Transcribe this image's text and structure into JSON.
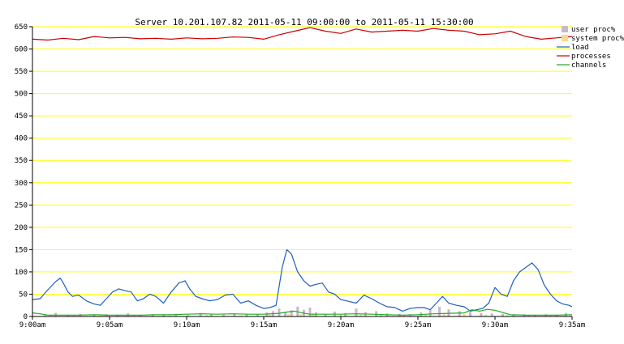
{
  "chart_data": {
    "type": "line",
    "title": "Server 10.201.107.82   2011-05-11 09:00:00 to 2011-05-11 15:30:00",
    "xlabel": "",
    "ylabel": "",
    "x_tick_labels": [
      "9:00am",
      "9:05am",
      "9:10am",
      "9:15am",
      "9:20am",
      "9:25am",
      "9:30am",
      "9:35am"
    ],
    "x_tick_minutes": [
      0,
      5,
      10,
      15,
      20,
      25,
      30,
      35
    ],
    "xlim": [
      0,
      35
    ],
    "ylim": [
      0,
      650
    ],
    "y_ticks": [
      0,
      50,
      100,
      150,
      200,
      250,
      300,
      350,
      400,
      450,
      500,
      550,
      600,
      650
    ],
    "grid": true,
    "legend_position": "top-right",
    "colors": {
      "user_proc": "#c8b8c8",
      "system_proc": "#ffd890",
      "load": "#1f5fbf",
      "processes": "#cc0000",
      "channels": "#22aa22",
      "grid": "#ffff00"
    },
    "series": [
      {
        "name": "user proc%",
        "style": "bar",
        "x": [
          0.8,
          1.5,
          2.3,
          3.1,
          4.0,
          4.8,
          5.5,
          6.2,
          7.0,
          7.8,
          8.5,
          9.3,
          10.1,
          10.9,
          11.6,
          12.4,
          13.1,
          13.9,
          14.6,
          15.2,
          15.6,
          16.0,
          16.4,
          16.8,
          17.2,
          17.6,
          18.0,
          18.4,
          19.0,
          19.6,
          20.3,
          21.0,
          21.6,
          22.3,
          23.0,
          23.8,
          24.5,
          25.2,
          25.8,
          26.4,
          27.0,
          27.7,
          28.4,
          29.1,
          29.8,
          30.5,
          31.2,
          31.9,
          32.6,
          33.3,
          34.0,
          34.6
        ],
        "values": [
          3,
          8,
          4,
          6,
          3,
          5,
          4,
          7,
          3,
          5,
          4,
          6,
          3,
          8,
          5,
          4,
          7,
          6,
          5,
          9,
          12,
          18,
          10,
          14,
          22,
          15,
          20,
          9,
          6,
          11,
          8,
          18,
          10,
          12,
          7,
          6,
          5,
          9,
          14,
          22,
          16,
          12,
          10,
          8,
          7,
          6,
          5,
          5,
          4,
          5,
          4,
          8
        ]
      },
      {
        "name": "system proc%",
        "style": "bar",
        "x": [
          1.2,
          2.7,
          4.4,
          6.6,
          8.9,
          11.3,
          13.5,
          15.4,
          16.6,
          17.4,
          18.2,
          20.0,
          21.3,
          22.6,
          24.1,
          25.5,
          26.7,
          28.0,
          29.4,
          30.8,
          32.2,
          33.6,
          34.9
        ],
        "values": [
          2,
          3,
          2,
          3,
          2,
          3,
          2,
          4,
          6,
          5,
          7,
          4,
          5,
          4,
          3,
          4,
          6,
          5,
          4,
          3,
          3,
          2,
          3
        ]
      },
      {
        "name": "load",
        "style": "line",
        "x": [
          0,
          0.5,
          1.0,
          1.5,
          1.8,
          2.0,
          2.3,
          2.6,
          3.0,
          3.5,
          4.0,
          4.4,
          4.8,
          5.2,
          5.6,
          6.0,
          6.4,
          6.8,
          7.2,
          7.6,
          8.0,
          8.5,
          9.0,
          9.5,
          9.9,
          10.2,
          10.6,
          11.0,
          11.5,
          12.0,
          12.5,
          13.0,
          13.5,
          14.0,
          14.5,
          15.0,
          15.4,
          15.8,
          16.2,
          16.5,
          16.8,
          17.2,
          17.6,
          18.0,
          18.4,
          18.8,
          19.2,
          19.6,
          20.0,
          20.5,
          21.0,
          21.5,
          22.0,
          22.5,
          23.0,
          23.5,
          24.0,
          24.5,
          25.0,
          25.4,
          25.8,
          26.2,
          26.6,
          27.0,
          27.5,
          28.0,
          28.4,
          28.8,
          29.2,
          29.6,
          30.0,
          30.4,
          30.8,
          31.2,
          31.6,
          32.0,
          32.4,
          32.8,
          33.2,
          33.6,
          34.0,
          34.4,
          34.8,
          35.0
        ],
        "values": [
          38,
          40,
          60,
          78,
          86,
          75,
          55,
          45,
          48,
          35,
          28,
          25,
          40,
          55,
          62,
          58,
          55,
          35,
          40,
          50,
          45,
          30,
          55,
          75,
          80,
          62,
          45,
          40,
          35,
          38,
          48,
          50,
          30,
          35,
          25,
          18,
          20,
          25,
          110,
          150,
          140,
          100,
          80,
          68,
          72,
          75,
          55,
          50,
          38,
          34,
          30,
          48,
          40,
          30,
          22,
          20,
          12,
          18,
          20,
          20,
          15,
          30,
          45,
          30,
          25,
          22,
          12,
          15,
          18,
          30,
          65,
          50,
          45,
          80,
          100,
          110,
          120,
          105,
          70,
          50,
          35,
          28,
          25,
          22
        ],
        "note_markers": [],
        "labels": []
      },
      {
        "name": "processes",
        "style": "line",
        "x": [
          0,
          1,
          2,
          3,
          4,
          5,
          6,
          7,
          8,
          9,
          10,
          11,
          12,
          13,
          14,
          15,
          16,
          17,
          18,
          19,
          20,
          21,
          22,
          23,
          24,
          25,
          26,
          27,
          28,
          29,
          30,
          31,
          32,
          33,
          34,
          35
        ],
        "values": [
          622,
          620,
          624,
          621,
          628,
          625,
          626,
          623,
          624,
          622,
          625,
          623,
          624,
          627,
          626,
          622,
          632,
          640,
          648,
          640,
          635,
          645,
          638,
          640,
          642,
          640,
          646,
          642,
          640,
          632,
          634,
          640,
          628,
          622,
          625,
          628
        ]
      },
      {
        "name": "channels",
        "style": "line",
        "x": [
          0,
          0.5,
          1,
          2,
          3,
          4,
          5,
          6,
          7,
          8,
          9,
          10,
          11,
          12,
          13,
          14,
          15,
          16,
          16.5,
          17,
          17.5,
          18,
          19,
          20,
          21,
          22,
          23,
          24,
          25,
          26,
          27,
          28,
          28.5,
          29,
          29.5,
          30,
          31,
          32,
          33,
          34,
          35
        ],
        "values": [
          8,
          6,
          3,
          3,
          3,
          4,
          3,
          3,
          3,
          4,
          4,
          5,
          6,
          5,
          6,
          5,
          5,
          7,
          10,
          12,
          8,
          5,
          5,
          5,
          6,
          5,
          4,
          3,
          4,
          6,
          7,
          8,
          15,
          12,
          16,
          14,
          4,
          3,
          3,
          3,
          4
        ]
      }
    ]
  }
}
